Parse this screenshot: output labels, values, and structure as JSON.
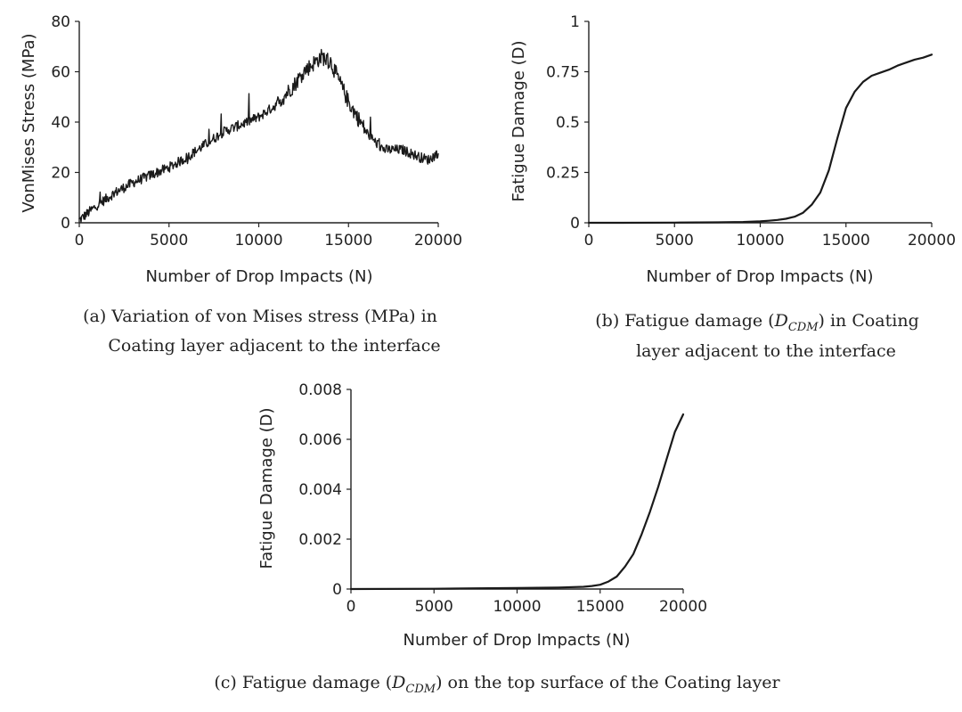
{
  "chart_data": [
    {
      "id": "a",
      "type": "line",
      "xlabel": "Number of Drop Impacts (N)",
      "ylabel": "VonMises Stress (MPa)",
      "xlim": [
        0,
        20000
      ],
      "ylim": [
        0,
        80
      ],
      "xticks": [
        "0",
        "5000",
        "10000",
        "15000",
        "20000"
      ],
      "yticks": [
        "0",
        "20",
        "40",
        "60",
        "80"
      ],
      "grid": false,
      "legend": "none",
      "caption_lines": [
        "(a)  Variation of von Mises stress (MPa) in",
        "Coating layer adjacent to the interface"
      ],
      "series": [
        {
          "x": [
            0,
            500,
            1000,
            2000,
            3000,
            4000,
            5000,
            6000,
            7000,
            8000,
            9000,
            10000,
            11000,
            12000,
            12500,
            13000,
            13500,
            14000,
            14500,
            15000,
            15500,
            16000,
            16500,
            17000,
            18000,
            19000,
            19500,
            20000
          ],
          "y": [
            1,
            4,
            7,
            12,
            16,
            19,
            22,
            26,
            31,
            36,
            39,
            42,
            47,
            55,
            60,
            63,
            66,
            64,
            56,
            48,
            42,
            36,
            32,
            29,
            29,
            26,
            25,
            28
          ]
        }
      ]
    },
    {
      "id": "b",
      "type": "line",
      "xlabel": "Number of Drop Impacts (N)",
      "ylabel": "Fatigue Damage (D)",
      "xlim": [
        0,
        20000
      ],
      "ylim": [
        0,
        1
      ],
      "xticks": [
        "0",
        "5000",
        "10000",
        "15000",
        "20000"
      ],
      "yticks": [
        "0",
        "0.25",
        "0.5",
        "0.75",
        "1"
      ],
      "grid": false,
      "legend": "none",
      "caption_lines": [
        "(b)  Fatigue damage (D_CDM) in Coating",
        "layer adjacent to the interface"
      ],
      "series": [
        {
          "x": [
            0,
            2000,
            5000,
            7500,
            9000,
            10000,
            10500,
            11000,
            11500,
            12000,
            12500,
            13000,
            13500,
            14000,
            14500,
            15000,
            15500,
            16000,
            16500,
            17000,
            17500,
            18000,
            18500,
            19000,
            19500,
            20000
          ],
          "y": [
            0,
            0,
            0.001,
            0.002,
            0.004,
            0.007,
            0.01,
            0.014,
            0.02,
            0.03,
            0.05,
            0.09,
            0.15,
            0.26,
            0.42,
            0.57,
            0.65,
            0.7,
            0.73,
            0.745,
            0.76,
            0.78,
            0.795,
            0.81,
            0.82,
            0.835
          ]
        }
      ]
    },
    {
      "id": "c",
      "type": "line",
      "xlabel": "Number of Drop Impacts (N)",
      "ylabel": "Fatigue Damage (D)",
      "xlim": [
        0,
        20000
      ],
      "ylim": [
        0,
        0.008
      ],
      "xticks": [
        "0",
        "5000",
        "10000",
        "15000",
        "20000"
      ],
      "yticks": [
        "0",
        "0.002",
        "0.004",
        "0.006",
        "0.008"
      ],
      "grid": false,
      "legend": "none",
      "caption_lines": [
        "(c)  Fatigue damage (D_CDM) on the top surface of the Coating layer"
      ],
      "series": [
        {
          "x": [
            0,
            5000,
            7500,
            10000,
            12500,
            14000,
            14500,
            15000,
            15500,
            16000,
            16500,
            17000,
            17500,
            18000,
            18500,
            19000,
            19500,
            20000
          ],
          "y": [
            0,
            1e-05,
            3e-05,
            4e-05,
            6e-05,
            9e-05,
            0.00012,
            0.00017,
            0.0003,
            0.0005,
            0.0009,
            0.0014,
            0.0022,
            0.0031,
            0.0041,
            0.0052,
            0.0063,
            0.007
          ]
        }
      ]
    }
  ],
  "captions": {
    "a_line1": "(a)  Variation of von Mises stress (MPa) in",
    "a_line2": "Coating layer adjacent to the interface",
    "b_line1_pre": "(b)  Fatigue damage (",
    "b_math_main": "D",
    "b_math_sub": "CDM",
    "b_line1_post": ") in Coating",
    "b_line2": "layer adjacent to the interface",
    "c_pre": "(c)  Fatigue damage (",
    "c_math_main": "D",
    "c_math_sub": "CDM",
    "c_post": ") on the top surface of the Coating layer"
  }
}
